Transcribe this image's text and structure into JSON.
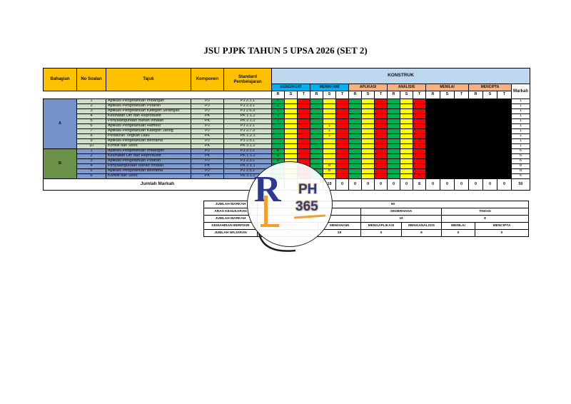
{
  "title": "JSU PJPK TAHUN 5 UPSA 2026 (SET 2)",
  "colors": {
    "header_orange": "#FFC000",
    "konstruk_bg": "#BDD7EE",
    "taxonomy_blue": "#00B0F0",
    "taxonomy_peach": "#F4B183",
    "rendah_green": "#00B050",
    "sederhana_yellow": "#FFFF00",
    "tinggi_red": "#FF0000",
    "blackout": "#000000",
    "section_a_label": "#7491C9",
    "section_a_row": "#CDDEC5",
    "section_b_label": "#6A9147",
    "section_b_row": "#7E9ACF",
    "logo_navy": "#2B3990",
    "logo_gold": "#F0A030"
  },
  "table": {
    "header": {
      "left_columns": [
        "Bahagian",
        "No Soalan",
        "Tajuk",
        "Komponen",
        "Standard Pembelajaran"
      ],
      "konstruk_label": "KONSTRUK",
      "markah_label": "Markah"
    },
    "construct_groups": [
      {
        "label": "MENGINGAT",
        "color": "taxonomy_blue"
      },
      {
        "label": "MEMAHAMI",
        "color": "taxonomy_blue"
      },
      {
        "label": "APLIKASI",
        "color": "taxonomy_peach"
      },
      {
        "label": "ANALISIS",
        "color": "taxonomy_peach"
      },
      {
        "label": "MENILAI",
        "color": "taxonomy_peach"
      },
      {
        "label": "MENCIPTA",
        "color": "taxonomy_peach"
      }
    ],
    "rst_labels": [
      "R",
      "S",
      "T"
    ],
    "sections": [
      {
        "label": "A",
        "label_color": "section_a_label",
        "row_color": "section_a_row",
        "rows": [
          {
            "no": "1",
            "tajuk": "Aplikasi Pengetahuan Imbangan",
            "komponen": "PJ",
            "standard": "PJ 2.1.1",
            "value_col": 0,
            "value": "1",
            "markah": "1"
          },
          {
            "no": "2",
            "tajuk": "Aplikasi Pengetahuan Putaran",
            "komponen": "PJ",
            "standard": "PJ 2.3.1",
            "value_col": 0,
            "value": "1",
            "markah": "1"
          },
          {
            "no": "3",
            "tajuk": "Aplikasi Pengetahuan Kategori Serangan",
            "komponen": "PJ",
            "standard": "PJ 2.6.3",
            "value_col": 0,
            "value": "1",
            "markah": "1"
          },
          {
            "no": "4",
            "tajuk": "Kesihatan Diri dan Reproduktif",
            "komponen": "PK",
            "standard": "PK 1.1.2",
            "value_col": 0,
            "value": "1",
            "markah": "1"
          },
          {
            "no": "5",
            "tajuk": "Penyalahgunaan Bahan Inhalan",
            "komponen": "PK",
            "standard": "PK 2.1.2",
            "value_col": 0,
            "value": "1",
            "markah": "1"
          },
          {
            "no": "6",
            "tajuk": "Aplikasi Pengetahuan Hambur",
            "komponen": "PJ",
            "standard": "PJ 2.2.1",
            "value_col": 4,
            "value": "1",
            "markah": "1"
          },
          {
            "no": "7",
            "tajuk": "Aplikasi Pengetahuan Kategori Jaring",
            "komponen": "PJ",
            "standard": "PJ 2.7.3",
            "value_col": 4,
            "value": "1",
            "markah": "1"
          },
          {
            "no": "8",
            "tajuk": "Peraturan Tingkah Laku",
            "komponen": "PK",
            "standard": "PK 1.2.1",
            "value_col": 4,
            "value": "1",
            "markah": "1"
          },
          {
            "no": "9",
            "tajuk": "Aplikasi Pengetahuan Berirama",
            "komponen": "PJ",
            "standard": "PJ 2.5.1",
            "value_col": 11,
            "value": "1",
            "markah": "1"
          },
          {
            "no": "10",
            "tajuk": "Konflik dan Stres",
            "komponen": "PK",
            "standard": "PK 3.1.2",
            "value_col": 11,
            "value": "1",
            "markah": "1"
          }
        ]
      },
      {
        "label": "B",
        "label_color": "section_b_label",
        "row_color": "section_b_row",
        "rows": [
          {
            "no": "1",
            "tajuk": "Aplikasi Pengetahuan Imbangan",
            "komponen": "PJ",
            "standard": "PJ 2.1.1",
            "value_col": 0,
            "value": "6",
            "markah": "6"
          },
          {
            "no": "2",
            "tajuk": "Kesihatan Diri dan Reproduktif",
            "komponen": "PK",
            "standard": "PK 1.1.2",
            "value_col": 0,
            "value": "6",
            "markah": "6"
          },
          {
            "no": "3",
            "tajuk": "Aplikasi Pengetahuan Putaran",
            "komponen": "PJ",
            "standard": "PJ 2.3.1",
            "value_col": 0,
            "value": "6",
            "markah": "6"
          },
          {
            "no": "4",
            "tajuk": "Penyalahgunaan Bahan Inhalan",
            "komponen": "PK",
            "standard": "PK 2.1.1",
            "value_col": 4,
            "value": "8",
            "markah": "8"
          },
          {
            "no": "5",
            "tajuk": "Aplikasi Pengetahuan Berirama",
            "komponen": "PJ",
            "standard": "PJ 2.5.1",
            "value_col": 4,
            "value": "8",
            "markah": "8"
          },
          {
            "no": "6",
            "tajuk": "Konflik dan Stres",
            "komponen": "PK",
            "standard": "PK 3.1.2",
            "value_col": 11,
            "value": "6",
            "markah": "6"
          }
        ]
      }
    ],
    "jumlah": {
      "label": "Jumlah Markah",
      "values": [
        "23",
        "0",
        "0",
        "0",
        "19",
        "0",
        "0",
        "0",
        "0",
        "0",
        "0",
        "8",
        "0",
        "0",
        "0",
        "0",
        "0",
        "0"
      ],
      "total": "50"
    }
  },
  "summary": {
    "rows": [
      {
        "label": "JUMLAH MARKAH",
        "cells": [
          {
            "text": "50",
            "span": 6
          }
        ]
      },
      {
        "label": "ARAS KESUKARAN",
        "cells": [
          {
            "text": "RENDAH",
            "span": 2
          },
          {
            "text": "SEDERHANA",
            "span": 2
          },
          {
            "text": "TINGGI",
            "span": 2
          }
        ]
      },
      {
        "label": "JUMLAH MARKAH",
        "cells": [
          {
            "text": "23",
            "span": 2
          },
          {
            "text": "19",
            "span": 2
          },
          {
            "text": "8",
            "span": 2
          }
        ]
      },
      {
        "label": "KEMAHIRAN BERFIKIR",
        "cells": [
          {
            "text": "MENGINGAT",
            "span": 1
          },
          {
            "text": "MEMAHAMI",
            "span": 1
          },
          {
            "text": "MENGAPLIKASI",
            "span": 1
          },
          {
            "text": "MENGANALISIS",
            "span": 1
          },
          {
            "text": "MENILAI",
            "span": 1
          },
          {
            "text": "MENCIPTA",
            "span": 1
          }
        ]
      },
      {
        "label": "JUMLAH WAJARAN",
        "cells": [
          {
            "text": "23",
            "span": 1
          },
          {
            "text": "19",
            "span": 1
          },
          {
            "text": "0",
            "span": 1
          },
          {
            "text": "8",
            "span": 1
          },
          {
            "text": "0",
            "span": 1
          },
          {
            "text": "0",
            "span": 1
          }
        ]
      }
    ]
  },
  "watermark": {
    "letter_r": "R",
    "text_ph": "PH",
    "text_365": "365"
  }
}
